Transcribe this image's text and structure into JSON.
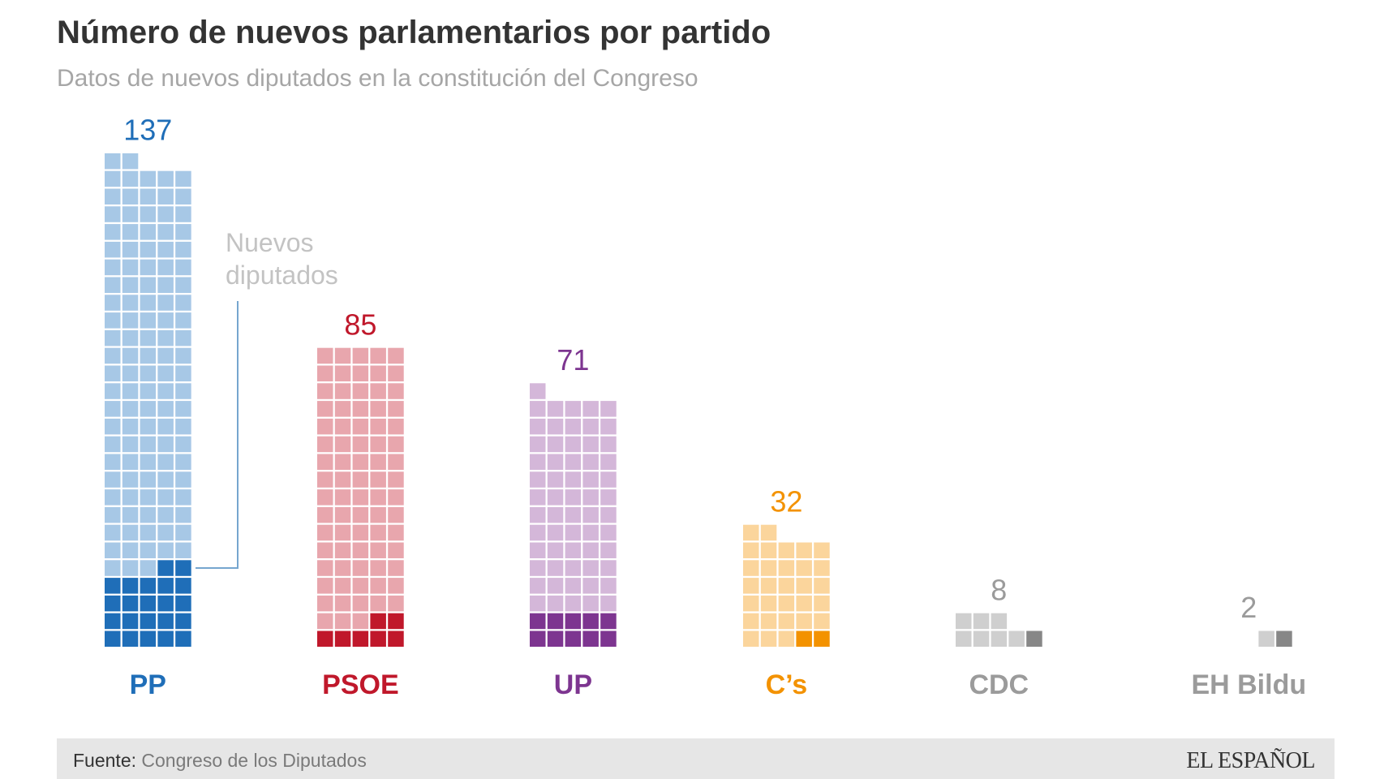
{
  "header": {
    "title": "Número de nuevos parlamentarios por partido",
    "subtitle": "Datos de nuevos diputados en la constitución del Congreso"
  },
  "annotation": {
    "line1": "Nuevos",
    "line2": "diputados"
  },
  "footer": {
    "source_key": "Fuente:",
    "source_value": "Congreso de los Diputados",
    "logo": "EL ESPAÑOL"
  },
  "chart_data": {
    "type": "waffle-bar",
    "title": "Número de nuevos parlamentarios por partido",
    "subtitle": "Datos de nuevos diputados en la constitución del Congreso",
    "unit": "diputados",
    "columns_per_stack": 5,
    "categories": [
      "PP",
      "PSOE",
      "UP",
      "C's",
      "CDC",
      "EH Bildu"
    ],
    "series": [
      {
        "name": "Total diputados",
        "values": [
          137,
          85,
          71,
          32,
          8,
          2
        ]
      },
      {
        "name": "Nuevos diputados",
        "values": [
          22,
          7,
          10,
          2,
          1,
          1
        ]
      }
    ],
    "parties": [
      {
        "name": "PP",
        "label": "PP",
        "total": 137,
        "nuevos": 22,
        "color": "#1f6eb8",
        "light": "#a7c8e6"
      },
      {
        "name": "PSOE",
        "label": "PSOE",
        "total": 85,
        "nuevos": 7,
        "color": "#c0182b",
        "light": "#e8a6ad"
      },
      {
        "name": "UP",
        "label": "UP",
        "total": 71,
        "nuevos": 10,
        "color": "#7d3590",
        "light": "#d4b7d9"
      },
      {
        "name": "C's",
        "label": "C’s",
        "total": 32,
        "nuevos": 2,
        "color": "#f39200",
        "light": "#fbd59c"
      },
      {
        "name": "CDC",
        "label": "CDC",
        "total": 8,
        "nuevos": 1,
        "color": "#878787",
        "light": "#cfcfcf",
        "label_color": "#9b9b9b"
      },
      {
        "name": "EH Bildu",
        "label": "EH Bildu",
        "total": 2,
        "nuevos": 1,
        "color": "#878787",
        "light": "#cfcfcf",
        "label_color": "#9b9b9b"
      }
    ],
    "annotation": "Nuevos diputados",
    "legend": "none",
    "grid": false
  }
}
